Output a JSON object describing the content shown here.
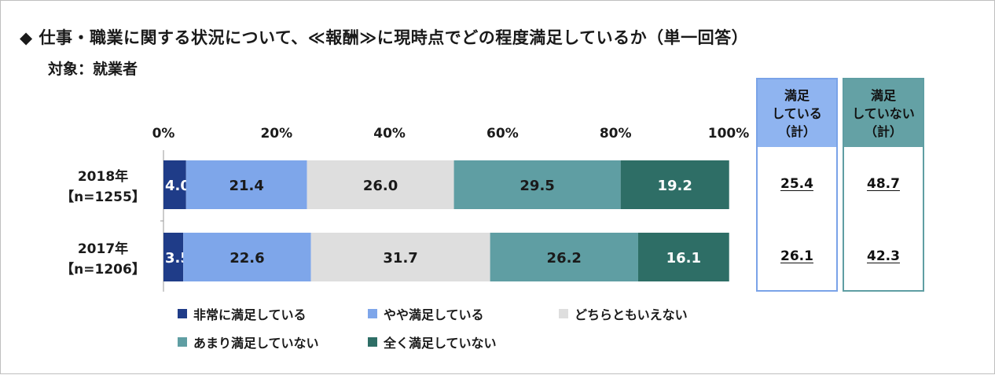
{
  "title": "◆ 仕事・職業に関する状況について、≪報酬≫に現時点でどの程度満足しているか（単一回答）",
  "subtitle": "対象：就業者",
  "colors": [
    "#1f3c88",
    "#7ea6ea",
    "#dedede",
    "#5f9ea3",
    "#2e6e66"
  ],
  "chart_data": {
    "type": "bar",
    "orientation": "horizontal",
    "stacked": true,
    "xlim": [
      0,
      100
    ],
    "x_ticks": [
      "0%",
      "20%",
      "40%",
      "60%",
      "80%",
      "100%"
    ],
    "categories": [
      "2018年\n【n=1255】",
      "2017年\n【n=1206】"
    ],
    "series": [
      {
        "name": "非常に満足している",
        "values": [
          4.0,
          3.5
        ],
        "labels": [
          "4.0",
          "3.5"
        ]
      },
      {
        "name": "やや満足している",
        "values": [
          21.4,
          22.6
        ],
        "labels": [
          "21.4",
          "22.6"
        ]
      },
      {
        "name": "どちらともいえない",
        "values": [
          26.0,
          31.7
        ],
        "labels": [
          "26.0",
          "31.7"
        ]
      },
      {
        "name": "あまり満足していない",
        "values": [
          29.5,
          26.2
        ],
        "labels": [
          "29.5",
          "26.2"
        ]
      },
      {
        "name": "全く満足していない",
        "values": [
          19.2,
          16.1
        ],
        "labels": [
          "19.2",
          "16.1"
        ]
      }
    ],
    "legend_position": "bottom"
  },
  "summary": [
    {
      "header": "満足\nしている\n（計）",
      "values": [
        "25.4",
        "26.1"
      ]
    },
    {
      "header": "満足\nしていない\n（計）",
      "values": [
        "48.7",
        "42.3"
      ]
    }
  ]
}
